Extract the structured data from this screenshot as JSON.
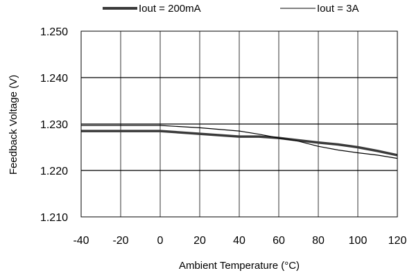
{
  "chart_data": {
    "type": "line",
    "xlabel": "Ambient Temperature (°C)",
    "ylabel": "Feedback Voltage (V)",
    "xlim": [
      -40,
      120
    ],
    "ylim": [
      1.21,
      1.25
    ],
    "x_ticks": [
      -40,
      -20,
      0,
      20,
      40,
      60,
      80,
      100,
      120
    ],
    "x_tick_labels": [
      "-40",
      "-20",
      "0",
      "20",
      "40",
      "60",
      "80",
      "100",
      "120"
    ],
    "y_ticks": [
      1.21,
      1.22,
      1.23,
      1.24,
      1.25
    ],
    "y_tick_labels": [
      "1.210",
      "1.220",
      "1.230",
      "1.240",
      "1.250"
    ],
    "grid": true,
    "legend_position": "top",
    "series": [
      {
        "name": "Iout = 200mA",
        "style": "thick",
        "color": "#3a3a3a",
        "x": [
          -40,
          -20,
          0,
          20,
          40,
          50,
          60,
          70,
          80,
          90,
          100,
          110,
          120
        ],
        "y": [
          1.2285,
          1.2285,
          1.2285,
          1.2279,
          1.2273,
          1.2273,
          1.227,
          1.2265,
          1.226,
          1.2256,
          1.225,
          1.2242,
          1.2233
        ]
      },
      {
        "name": "Iout = 3A",
        "style": "thin",
        "color": "#000000",
        "x": [
          -40,
          -20,
          0,
          20,
          40,
          50,
          60,
          70,
          80,
          90,
          100,
          110,
          120
        ],
        "y": [
          1.2297,
          1.2297,
          1.2297,
          1.2292,
          1.2285,
          1.2278,
          1.227,
          1.2263,
          1.2252,
          1.2244,
          1.2238,
          1.2233,
          1.2226
        ]
      }
    ]
  }
}
